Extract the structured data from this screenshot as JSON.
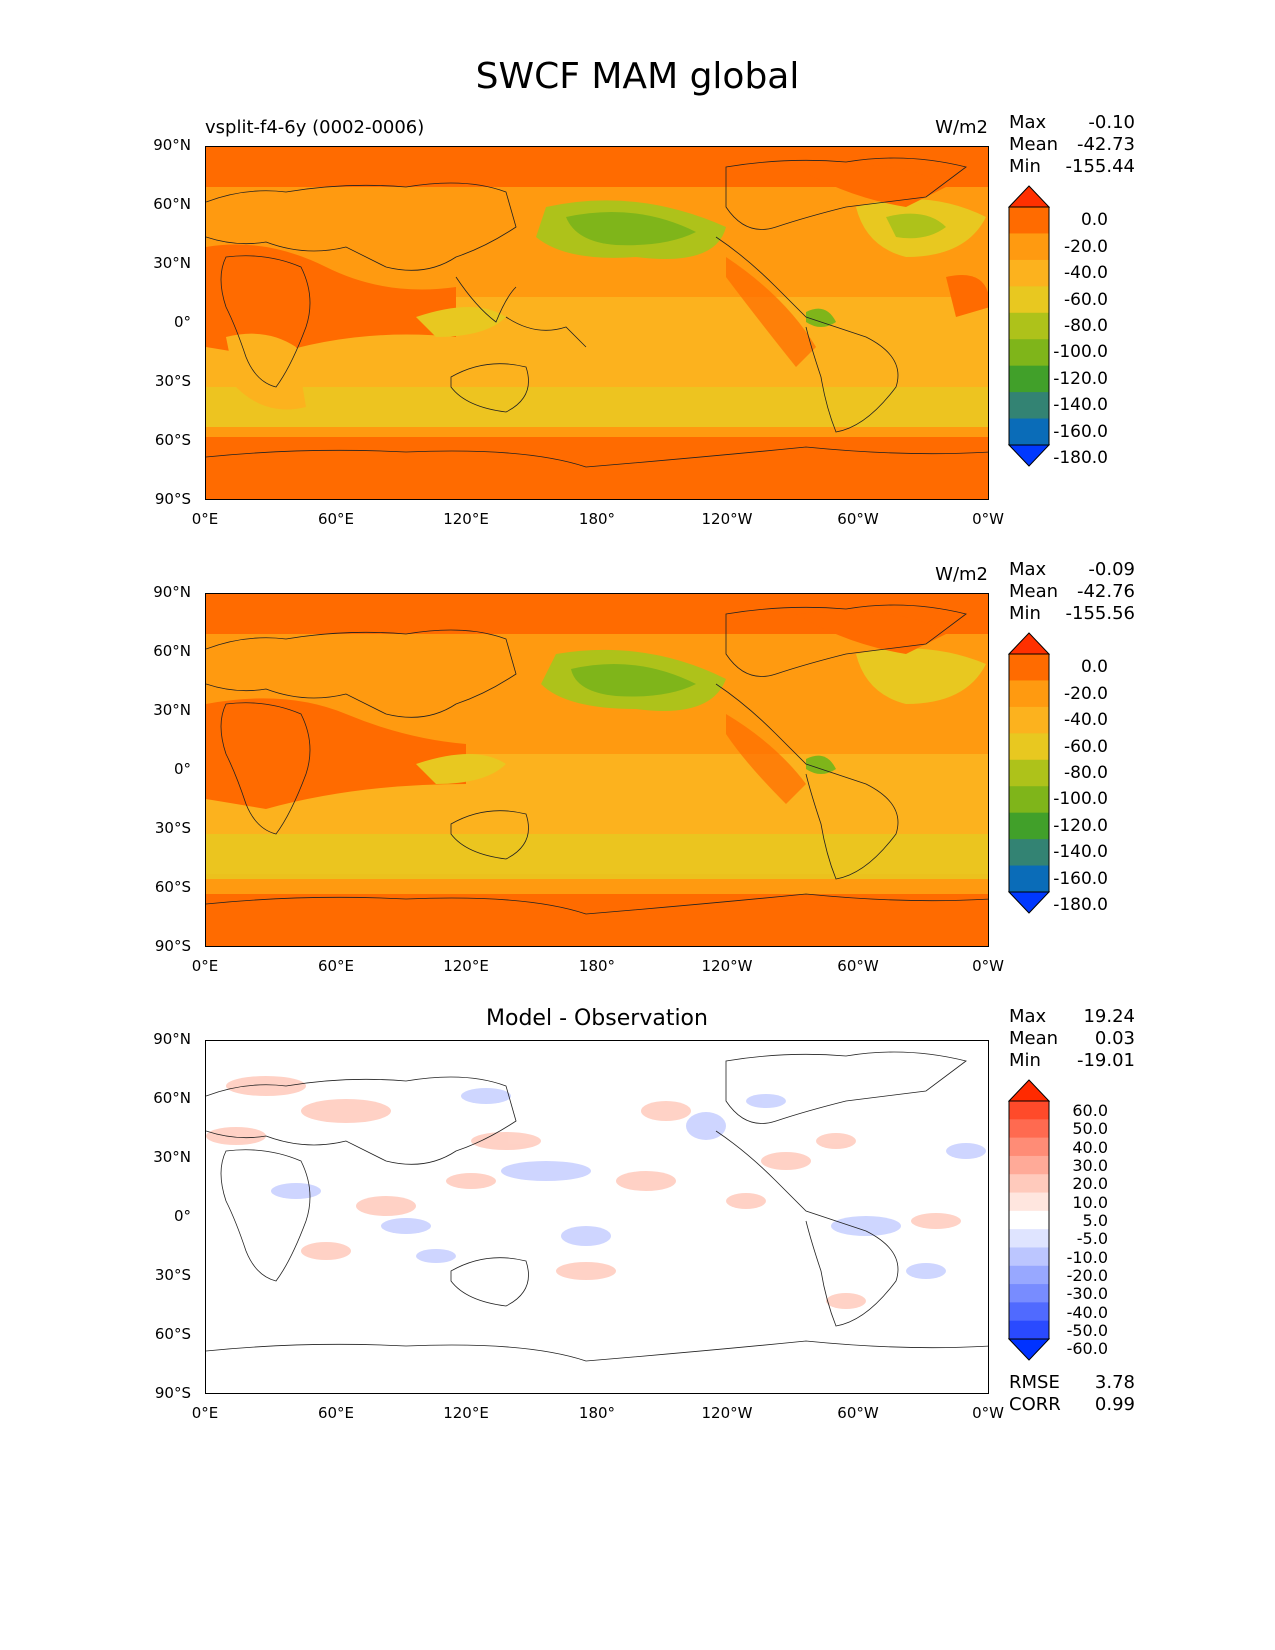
{
  "figure": {
    "title": "SWCF MAM global"
  },
  "panels": [
    {
      "id": "test",
      "left_title": "vsplit-f4-6y (0002-0006)",
      "center_title": "",
      "units": "W/m2",
      "stats": {
        "max_label": "Max",
        "max": "-0.10",
        "mean_label": "Mean",
        "mean": "-42.73",
        "min_label": "Min",
        "min": "-155.44"
      },
      "colorbar": {
        "labels": [
          "0.0",
          "-20.0",
          "-40.0",
          "-60.0",
          "-80.0",
          "-100.0",
          "-120.0",
          "-140.0",
          "-160.0",
          "-180.0"
        ],
        "colors": [
          "#ff3000",
          "#ff6b00",
          "#ff9a10",
          "#fcb21e",
          "#e8c820",
          "#aec21a",
          "#7fb51a",
          "#41a02a",
          "#338373",
          "#0a6cb8",
          "#0038ff"
        ]
      }
    },
    {
      "id": "ref",
      "left_title": "",
      "center_title": "",
      "units": "W/m2",
      "stats": {
        "max_label": "Max",
        "max": "-0.09",
        "mean_label": "Mean",
        "mean": "-42.76",
        "min_label": "Min",
        "min": "-155.56"
      },
      "colorbar": {
        "labels": [
          "0.0",
          "-20.0",
          "-40.0",
          "-60.0",
          "-80.0",
          "-100.0",
          "-120.0",
          "-140.0",
          "-160.0",
          "-180.0"
        ],
        "colors": [
          "#ff3000",
          "#ff6b00",
          "#ff9a10",
          "#fcb21e",
          "#e8c820",
          "#aec21a",
          "#7fb51a",
          "#41a02a",
          "#338373",
          "#0a6cb8",
          "#0038ff"
        ]
      }
    },
    {
      "id": "diff",
      "left_title": "",
      "center_title": "Model - Observation",
      "units": "",
      "stats": {
        "max_label": "Max",
        "max": "19.24",
        "mean_label": "Mean",
        "mean": "0.03",
        "min_label": "Min",
        "min": "-19.01"
      },
      "colorbar": {
        "labels": [
          "60.0",
          "50.0",
          "40.0",
          "30.0",
          "20.0",
          "10.0",
          "5.0",
          "-5.0",
          "-10.0",
          "-20.0",
          "-30.0",
          "-40.0",
          "-50.0",
          "-60.0"
        ],
        "colors": [
          "#ff2a00",
          "#ff4a2a",
          "#ff6a50",
          "#ff8c76",
          "#ffaa98",
          "#ffcabc",
          "#ffe6df",
          "#ffffff",
          "#dfe4ff",
          "#bcc6ff",
          "#98a8ff",
          "#788cff",
          "#506aff",
          "#2a4aff",
          "#0032ff"
        ]
      },
      "metrics": {
        "rmse_label": "RMSE",
        "rmse": "3.78",
        "corr_label": "CORR",
        "corr": "0.99"
      }
    }
  ],
  "axes": {
    "y_ticks": [
      "90°N",
      "60°N",
      "30°N",
      "0°",
      "30°S",
      "60°S",
      "90°S"
    ],
    "x_ticks": [
      "0°E",
      "60°E",
      "120°E",
      "180°",
      "120°W",
      "60°W",
      "0°W"
    ]
  },
  "colors": {
    "deep_orange": "#ff6b00",
    "orange": "#ff9a10",
    "light_orange": "#fcb21e",
    "yellow": "#e8c820",
    "yellow_green": "#aec21a",
    "green": "#7fb51a",
    "diff_red": "#ffcabc",
    "diff_blue": "#c9d1ff"
  }
}
